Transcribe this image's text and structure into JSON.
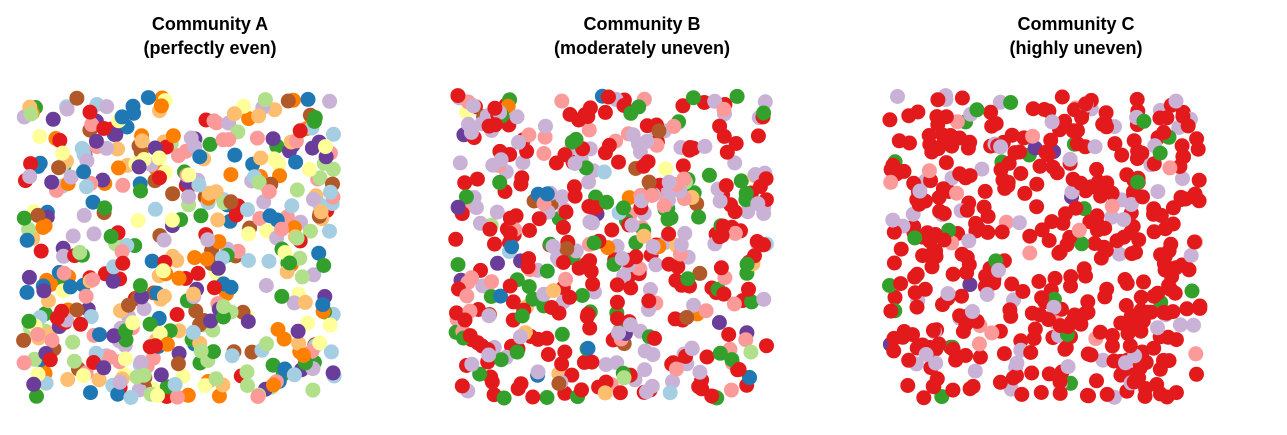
{
  "chart_data": [
    {
      "type": "scatter",
      "title": "Community A",
      "subtitle": "(perfectly even)",
      "xlim": [
        0,
        1
      ],
      "ylim": [
        0,
        1
      ],
      "grid": false,
      "legend": "none",
      "n_points": 500,
      "series": [
        {
          "color": "#A6CEE3",
          "share": 0.0833
        },
        {
          "color": "#1F78B4",
          "share": 0.0833
        },
        {
          "color": "#B2DF8A",
          "share": 0.0833
        },
        {
          "color": "#33A02C",
          "share": 0.0833
        },
        {
          "color": "#FB9A99",
          "share": 0.0833
        },
        {
          "color": "#E31A1C",
          "share": 0.0833
        },
        {
          "color": "#FDBF6F",
          "share": 0.0833
        },
        {
          "color": "#FF7F00",
          "share": 0.0833
        },
        {
          "color": "#CAB2D6",
          "share": 0.0833
        },
        {
          "color": "#6A3D9A",
          "share": 0.0833
        },
        {
          "color": "#FFFF99",
          "share": 0.0833
        },
        {
          "color": "#B15928",
          "share": 0.0833
        }
      ]
    },
    {
      "type": "scatter",
      "title": "Community B",
      "subtitle": "(moderately uneven)",
      "xlim": [
        0,
        1
      ],
      "ylim": [
        0,
        1
      ],
      "grid": false,
      "legend": "none",
      "n_points": 500,
      "series": [
        {
          "color": "#E31A1C",
          "share": 0.4
        },
        {
          "color": "#CAB2D6",
          "share": 0.24
        },
        {
          "color": "#33A02C",
          "share": 0.14
        },
        {
          "color": "#FB9A99",
          "share": 0.1
        },
        {
          "color": "#B15928",
          "share": 0.03
        },
        {
          "color": "#FDBF6F",
          "share": 0.02
        },
        {
          "color": "#6A3D9A",
          "share": 0.02
        },
        {
          "color": "#1F78B4",
          "share": 0.015
        },
        {
          "color": "#A6CEE3",
          "share": 0.01
        },
        {
          "color": "#B2DF8A",
          "share": 0.01
        },
        {
          "color": "#FF7F00",
          "share": 0.01
        },
        {
          "color": "#FFFF99",
          "share": 0.005
        }
      ]
    },
    {
      "type": "scatter",
      "title": "Community C",
      "subtitle": "(highly uneven)",
      "xlim": [
        0,
        1
      ],
      "ylim": [
        0,
        1
      ],
      "grid": false,
      "legend": "none",
      "n_points": 500,
      "series": [
        {
          "color": "#E31A1C",
          "share": 0.76
        },
        {
          "color": "#CAB2D6",
          "share": 0.14
        },
        {
          "color": "#33A02C",
          "share": 0.05
        },
        {
          "color": "#FB9A99",
          "share": 0.04
        },
        {
          "color": "#6A3D9A",
          "share": 0.01
        }
      ]
    }
  ]
}
